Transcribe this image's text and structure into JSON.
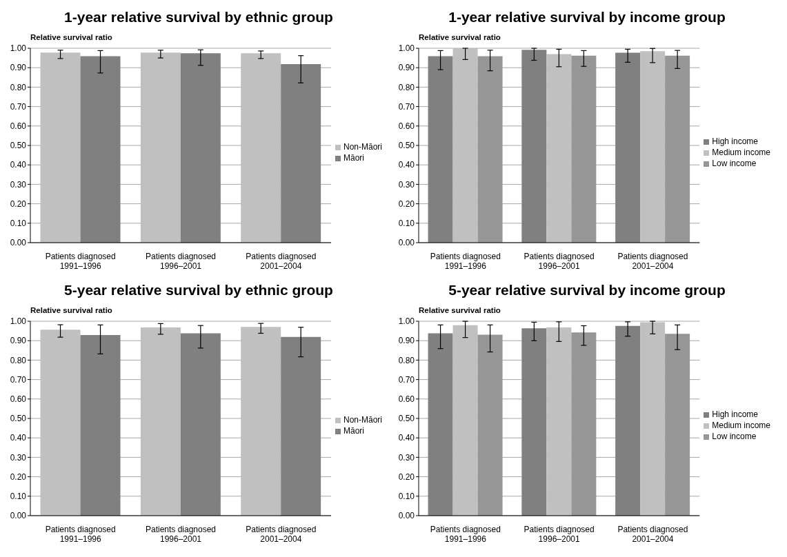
{
  "chart_data": [
    {
      "type": "bar",
      "title": "1-year relative survival by ethnic group",
      "ylabel": "Relative survival ratio",
      "categories": [
        "Patients diagnosed\n1991–1996",
        "Patients diagnosed\n1996–2001",
        "Patients diagnosed\n2001–2004"
      ],
      "series": [
        {
          "name": "Non-Māori",
          "color": "#c0c0c0",
          "values": [
            0.978,
            0.978,
            0.974
          ],
          "errors": [
            [
              0.947,
              0.99
            ],
            [
              0.95,
              0.99
            ],
            [
              0.947,
              0.986
            ]
          ]
        },
        {
          "name": "Māori",
          "color": "#808080",
          "values": [
            0.959,
            0.974,
            0.918
          ],
          "errors": [
            [
              0.873,
              0.988
            ],
            [
              0.912,
              0.992
            ],
            [
              0.822,
              0.962
            ]
          ]
        }
      ],
      "ylim": [
        0,
        1
      ],
      "yticks": [
        {
          "value": 0,
          "label": "0.00"
        },
        {
          "value": 0.1,
          "label": "0.10"
        },
        {
          "value": 0.2,
          "label": "0.20"
        },
        {
          "value": 0.3,
          "label": "0.30"
        },
        {
          "value": 0.4,
          "label": "0.40"
        },
        {
          "value": 0.5,
          "label": "0.50"
        },
        {
          "value": 0.6,
          "label": "0.60"
        },
        {
          "value": 0.7,
          "label": "0.70"
        },
        {
          "value": 0.8,
          "label": "0.80"
        },
        {
          "value": 0.9,
          "label": "0.90"
        },
        {
          "value": 1,
          "label": "1.00"
        }
      ],
      "grid": "y",
      "legend": "right"
    },
    {
      "type": "bar",
      "title": "1-year relative survival by income group",
      "ylabel": "Relative survival ratio",
      "categories": [
        "Patients diagnosed\n1991–1996",
        "Patients diagnosed\n1996–2001",
        "Patients diagnosed\n2001–2004"
      ],
      "series": [
        {
          "name": "High income",
          "color": "#808080",
          "values": [
            0.959,
            0.992,
            0.977
          ],
          "errors": [
            [
              0.89,
              0.988
            ],
            [
              0.938,
              1.0
            ],
            [
              0.928,
              0.995
            ]
          ]
        },
        {
          "name": "Medium income",
          "color": "#c0c0c0",
          "values": [
            1.0,
            0.97,
            0.985
          ],
          "errors": [
            [
              0.942,
              1.0
            ],
            [
              0.905,
              0.995
            ],
            [
              0.926,
              0.999
            ]
          ]
        },
        {
          "name": "Low income",
          "color": "#969696",
          "values": [
            0.959,
            0.962,
            0.962
          ],
          "errors": [
            [
              0.884,
              0.99
            ],
            [
              0.907,
              0.988
            ],
            [
              0.896,
              0.989
            ]
          ]
        }
      ],
      "ylim": [
        0,
        1
      ],
      "yticks": [
        {
          "value": 0,
          "label": "0.00"
        },
        {
          "value": 0.1,
          "label": "0.10"
        },
        {
          "value": 0.2,
          "label": "0.20"
        },
        {
          "value": 0.3,
          "label": "0.30"
        },
        {
          "value": 0.4,
          "label": "0.40"
        },
        {
          "value": 0.5,
          "label": "0.50"
        },
        {
          "value": 0.6,
          "label": "0.60"
        },
        {
          "value": 0.7,
          "label": "0.70"
        },
        {
          "value": 0.8,
          "label": "0.80"
        },
        {
          "value": 0.9,
          "label": "0.90"
        },
        {
          "value": 1,
          "label": "1.00"
        }
      ],
      "grid": "y",
      "legend": "right"
    },
    {
      "type": "bar",
      "title": "5-year relative survival by ethnic group",
      "ylabel": "Relative survival ratio",
      "categories": [
        "Patients diagnosed\n1991–1996",
        "Patients diagnosed\n1996–2001",
        "Patients diagnosed\n2001–2004"
      ],
      "series": [
        {
          "name": "Non-Māori",
          "color": "#c0c0c0",
          "values": [
            0.957,
            0.968,
            0.971
          ],
          "errors": [
            [
              0.918,
              0.982
            ],
            [
              0.933,
              0.988
            ],
            [
              0.938,
              0.989
            ]
          ]
        },
        {
          "name": "Māori",
          "color": "#808080",
          "values": [
            0.929,
            0.938,
            0.919
          ],
          "errors": [
            [
              0.832,
              0.981
            ],
            [
              0.862,
              0.978
            ],
            [
              0.817,
              0.969
            ]
          ]
        }
      ],
      "ylim": [
        0,
        1
      ],
      "yticks": [
        {
          "value": 0,
          "label": "0.00"
        },
        {
          "value": 0.1,
          "label": "0.10"
        },
        {
          "value": 0.2,
          "label": "0.20"
        },
        {
          "value": 0.3,
          "label": "0.30"
        },
        {
          "value": 0.4,
          "label": "0.40"
        },
        {
          "value": 0.5,
          "label": "0.50"
        },
        {
          "value": 0.6,
          "label": "0.60"
        },
        {
          "value": 0.7,
          "label": "0.70"
        },
        {
          "value": 0.8,
          "label": "0.80"
        },
        {
          "value": 0.9,
          "label": "0.90"
        },
        {
          "value": 1,
          "label": "1.00"
        }
      ],
      "grid": "y",
      "legend": "right"
    },
    {
      "type": "bar",
      "title": "5-year relative survival by income group",
      "ylabel": "Relative survival ratio",
      "categories": [
        "Patients diagnosed\n1991–1996",
        "Patients diagnosed\n1996–2001",
        "Patients diagnosed\n2001–2004"
      ],
      "series": [
        {
          "name": "High income",
          "color": "#808080",
          "values": [
            0.938,
            0.964,
            0.976
          ],
          "errors": [
            [
              0.859,
              0.981
            ],
            [
              0.9,
              0.995
            ],
            [
              0.923,
              0.997
            ]
          ]
        },
        {
          "name": "Medium income",
          "color": "#c0c0c0",
          "values": [
            0.98,
            0.968,
            0.995
          ],
          "errors": [
            [
              0.916,
              1.0
            ],
            [
              0.896,
              0.997
            ],
            [
              0.935,
              1.0
            ]
          ]
        },
        {
          "name": "Low income",
          "color": "#969696",
          "values": [
            0.931,
            0.942,
            0.935
          ],
          "errors": [
            [
              0.842,
              0.981
            ],
            [
              0.876,
              0.977
            ],
            [
              0.854,
              0.981
            ]
          ]
        }
      ],
      "ylim": [
        0,
        1
      ],
      "yticks": [
        {
          "value": 0,
          "label": "0.00"
        },
        {
          "value": 0.1,
          "label": "0.10"
        },
        {
          "value": 0.2,
          "label": "0.20"
        },
        {
          "value": 0.3,
          "label": "0.30"
        },
        {
          "value": 0.4,
          "label": "0.40"
        },
        {
          "value": 0.5,
          "label": "0.50"
        },
        {
          "value": 0.6,
          "label": "0.60"
        },
        {
          "value": 0.7,
          "label": "0.70"
        },
        {
          "value": 0.8,
          "label": "0.80"
        },
        {
          "value": 0.9,
          "label": "0.90"
        },
        {
          "value": 1,
          "label": "1.00"
        }
      ],
      "grid": "y",
      "legend": "right"
    }
  ]
}
